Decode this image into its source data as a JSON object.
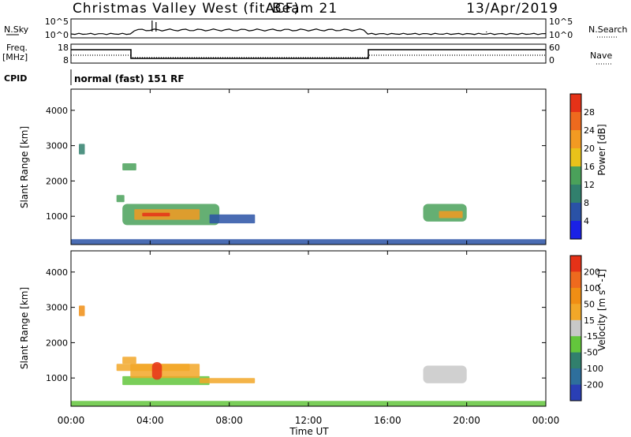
{
  "header": {
    "station": "Christmas Valley West (fitACF)",
    "beam": "Beam 21",
    "date": "13/Apr/2019"
  },
  "panels": {
    "nsky": {
      "label": "N.Sky",
      "tick_top": "10^5",
      "tick_bottom": "10^0",
      "right_label": "N.Search",
      "right_tick_top": "10^5",
      "right_tick_bottom": "10^0"
    },
    "freq": {
      "label_line1": "Freq.",
      "label_line2": "[MHz]",
      "tick_top": "18",
      "tick_bottom": "8",
      "right_label": "Nave",
      "right_tick_top": "60",
      "right_tick_bottom": "0"
    },
    "cpid": {
      "label": "CPID",
      "text": "normal (fast) 151 RF"
    }
  },
  "chart_data": [
    {
      "type": "heatmap",
      "name": "power",
      "ylabel": "Slant Range [km]",
      "colorbar_label": "Power [dB]",
      "yticks": [
        "1000",
        "2000",
        "3000",
        "4000"
      ],
      "ylim": [
        200,
        4600
      ],
      "color_scale": {
        "ticks": [
          "4",
          "8",
          "12",
          "16",
          "20",
          "24",
          "28"
        ],
        "colors": [
          "#1a21e6",
          "#2a52a6",
          "#31806d",
          "#4aa15a",
          "#e9c21a",
          "#f29a22",
          "#ee6a1e",
          "#e53218"
        ]
      },
      "regions": [
        {
          "t": [
            0.4,
            0.7
          ],
          "r": [
            2750,
            3050
          ],
          "level": 2
        },
        {
          "t": [
            2.6,
            3.3
          ],
          "r": [
            2300,
            2500
          ],
          "level": 3
        },
        {
          "t": [
            2.3,
            2.7
          ],
          "r": [
            1400,
            1600
          ],
          "level": 3
        },
        {
          "t": [
            2.6,
            7.5
          ],
          "r": [
            750,
            1350
          ],
          "level": 3
        },
        {
          "t": [
            3.2,
            6.5
          ],
          "r": [
            900,
            1200
          ],
          "level": 5
        },
        {
          "t": [
            3.6,
            5.0
          ],
          "r": [
            1000,
            1100
          ],
          "level": 7
        },
        {
          "t": [
            7.0,
            9.3
          ],
          "r": [
            800,
            1050
          ],
          "level": 1
        },
        {
          "t": [
            17.8,
            20.0
          ],
          "r": [
            850,
            1350
          ],
          "level": 3
        },
        {
          "t": [
            18.6,
            19.8
          ],
          "r": [
            950,
            1150
          ],
          "level": 5
        },
        {
          "t": [
            0.0,
            24.0
          ],
          "r": [
            200,
            350
          ],
          "level": 1
        }
      ]
    },
    {
      "type": "heatmap",
      "name": "velocity",
      "ylabel": "Slant Range [km]",
      "colorbar_label": "Velocity [m s^-1]",
      "yticks": [
        "1000",
        "2000",
        "3000",
        "4000"
      ],
      "ylim": [
        200,
        4600
      ],
      "color_scale": {
        "ticks": [
          "200",
          "100",
          "50",
          "15",
          "-15",
          "-50",
          "-100",
          "-200"
        ],
        "colors": [
          "#2a3fb5",
          "#2e6f9c",
          "#31806d",
          "#63c63c",
          "#c8c8c8",
          "#f2a728",
          "#f08e14",
          "#ee6a1e",
          "#e53218"
        ]
      },
      "regions": [
        {
          "t": [
            0.4,
            0.7
          ],
          "r": [
            2750,
            3050
          ],
          "level": 6
        },
        {
          "t": [
            2.6,
            3.3
          ],
          "r": [
            1400,
            1600
          ],
          "level": 5
        },
        {
          "t": [
            2.3,
            6.0
          ],
          "r": [
            1200,
            1400
          ],
          "level": 5
        },
        {
          "t": [
            2.6,
            7.0
          ],
          "r": [
            800,
            1050
          ],
          "level": 3
        },
        {
          "t": [
            3.0,
            6.5
          ],
          "r": [
            1000,
            1400
          ],
          "level": 5
        },
        {
          "t": [
            4.1,
            4.6
          ],
          "r": [
            950,
            1450
          ],
          "level": 8
        },
        {
          "t": [
            6.5,
            9.3
          ],
          "r": [
            850,
            1000
          ],
          "level": 5
        },
        {
          "t": [
            17.8,
            20.0
          ],
          "r": [
            850,
            1350
          ],
          "level": 4
        },
        {
          "t": [
            0.0,
            24.0
          ],
          "r": [
            200,
            350
          ],
          "level": 3
        }
      ]
    }
  ],
  "xaxis": {
    "ticks": [
      "00:00",
      "04:00",
      "08:00",
      "12:00",
      "16:00",
      "20:00",
      "00:00"
    ],
    "label": "Time UT",
    "xlim": [
      0,
      24
    ]
  }
}
